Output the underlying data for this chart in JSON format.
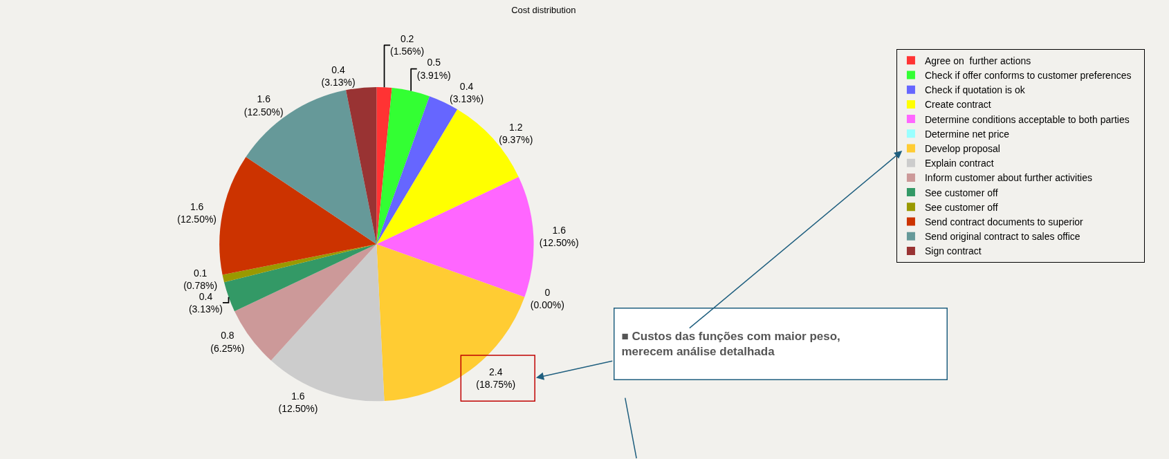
{
  "chart_data": {
    "type": "pie",
    "title": "Cost distribution",
    "categories": [
      "Agree on  further actions",
      "Check if offer conforms to customer preferences",
      "Check if quotation is ok",
      "Create contract",
      "Determine conditions acceptable to both parties",
      "Determine net price",
      "Develop proposal",
      "Explain contract",
      "Inform customer about further activities",
      "See customer off",
      "See customer off",
      "Send contract documents to superior",
      "Send original contract to sales office",
      "Sign contract"
    ],
    "values": [
      0.2,
      0.5,
      0.4,
      1.2,
      1.6,
      0,
      2.4,
      1.6,
      0.8,
      0.4,
      0.1,
      1.6,
      1.6,
      0.4
    ],
    "value_labels": [
      "0.2\n(1.56%)",
      "0.5\n(3.91%)",
      "0.4\n(3.13%)",
      "1.2\n(9.37%)",
      "1.6\n(12.50%)",
      "0\n(0.00%)",
      "2.4\n(18.75%)",
      "1.6\n(12.50%)",
      "0.8\n(6.25%)",
      "0.4\n(3.13%)",
      "0.1\n(0.78%)",
      "1.6\n(12.50%)",
      "1.6\n(12.50%)",
      "0.4\n(3.13%)"
    ],
    "colors": [
      "#ff3333",
      "#33ff33",
      "#6666ff",
      "#ffff00",
      "#ff66ff",
      "#99ffff",
      "#ffcc33",
      "#cccccc",
      "#cc9999",
      "#339966",
      "#999900",
      "#cc3300",
      "#669999",
      "#993333"
    ],
    "legend": "top right",
    "annotations": [
      "■ Custos das funções com maior peso,\nmerecem análise detalhada"
    ]
  }
}
